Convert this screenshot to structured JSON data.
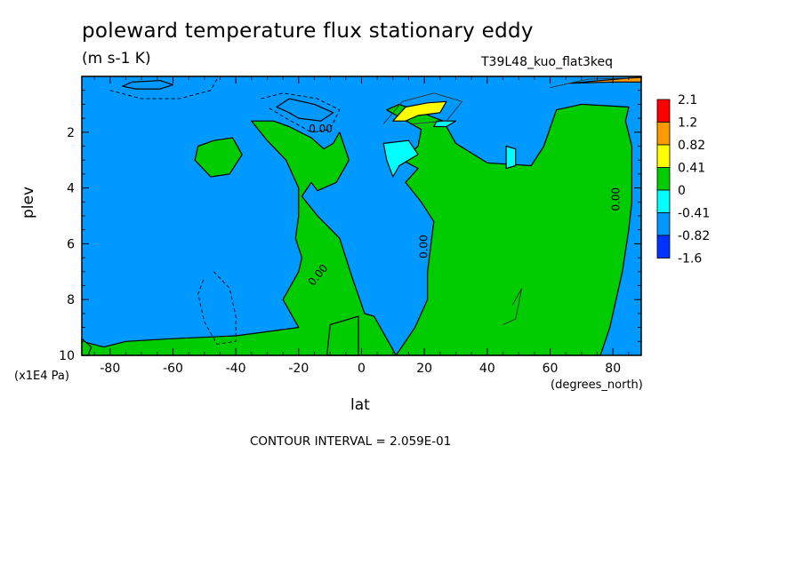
{
  "chart_data": {
    "type": "heatmap",
    "title": "poleward temperature flux stationary eddy",
    "units": "(m s-1 K)",
    "run_id": "T39L48_kuo_flat3keq",
    "xlabel": "lat",
    "xunits": "(degrees_north)",
    "ylabel": "plev",
    "yunits": "(x1E4 Pa)",
    "contour_interval": "CONTOUR INTERVAL = 2.059E-01",
    "xlim": [
      -89,
      89
    ],
    "ylim": [
      0,
      10
    ],
    "y_inverted": true,
    "x_ticks": [
      -80,
      -60,
      -40,
      -20,
      0,
      20,
      40,
      60,
      80
    ],
    "x_tick_labels": [
      "-80",
      "-60",
      "-40",
      "-20",
      "0",
      "20",
      "40",
      "60",
      "80"
    ],
    "y_ticks": [
      2,
      4,
      6,
      8,
      10
    ],
    "y_tick_labels": [
      "2",
      "4",
      "6",
      "8",
      "10"
    ],
    "colorbar": {
      "labels": [
        "2.1",
        "1.2",
        "0.82",
        "0.41",
        "0",
        "-0.41",
        "-0.82",
        "-1.6"
      ],
      "colors": [
        "#ff0000",
        "#ff9900",
        "#ffff00",
        "#00cc00",
        "#00ffff",
        "#0099ff",
        "#0033ff"
      ]
    },
    "contour_labels": [
      {
        "text": "0.00",
        "lat": -13,
        "plev": 2.0
      },
      {
        "text": "0.00",
        "lat": 21,
        "plev": 6.1
      },
      {
        "text": "0.00",
        "lat": -13,
        "plev": 7.2
      },
      {
        "text": "0.00",
        "lat": 82,
        "plev": 4.4
      }
    ],
    "regions": [
      {
        "fill": "#00cc00",
        "pts": [
          [
            -35,
            1.6
          ],
          [
            -28,
            1.6
          ],
          [
            -23,
            1.8
          ],
          [
            -16,
            2.2
          ],
          [
            -12,
            2.6
          ],
          [
            -9,
            2.4
          ],
          [
            -7,
            2.0
          ],
          [
            -4,
            3.0
          ],
          [
            -8,
            3.8
          ],
          [
            -14,
            4.1
          ],
          [
            -16,
            3.8
          ],
          [
            -19,
            4.3
          ],
          [
            -14,
            5.0
          ],
          [
            -7,
            5.8
          ],
          [
            -3,
            7.2
          ],
          [
            1,
            8.5
          ],
          [
            4,
            8.6
          ],
          [
            8,
            9.4
          ],
          [
            11,
            10.0
          ],
          [
            -89,
            10.0
          ],
          [
            -89,
            9.5
          ],
          [
            -82,
            9.7
          ],
          [
            -75,
            9.5
          ],
          [
            -60,
            9.4
          ],
          [
            -40,
            9.3
          ],
          [
            -20,
            9.0
          ],
          [
            -25,
            8.0
          ],
          [
            -20,
            7.0
          ],
          [
            -19,
            6.5
          ],
          [
            -21,
            5.8
          ],
          [
            -20,
            5.0
          ],
          [
            -20,
            4.0
          ],
          [
            -24,
            3.0
          ],
          [
            -30,
            2.3
          ]
        ]
      },
      {
        "fill": "#00cc00",
        "pts": [
          [
            8,
            1.2
          ],
          [
            19,
            1.9
          ],
          [
            18,
            2.5
          ],
          [
            13,
            3.0
          ],
          [
            18,
            3.3
          ],
          [
            14,
            3.8
          ],
          [
            19,
            4.5
          ],
          [
            23,
            5.2
          ],
          [
            21,
            7.0
          ],
          [
            21,
            8.0
          ],
          [
            17,
            9.0
          ],
          [
            11,
            10.0
          ],
          [
            76,
            10.0
          ],
          [
            79,
            9.0
          ],
          [
            81,
            8.0
          ],
          [
            83,
            7.0
          ],
          [
            85,
            5.5
          ],
          [
            86,
            4.5
          ],
          [
            86,
            2.5
          ],
          [
            84,
            1.6
          ],
          [
            85,
            1.1
          ],
          [
            70,
            1.0
          ],
          [
            62,
            1.2
          ],
          [
            58,
            2.5
          ],
          [
            54,
            3.2
          ],
          [
            40,
            3.1
          ],
          [
            30,
            2.4
          ],
          [
            26,
            1.6
          ],
          [
            12,
            1.0
          ]
        ]
      },
      {
        "fill": "#00cc00",
        "pts": [
          [
            -47,
            2.3
          ],
          [
            -41,
            2.2
          ],
          [
            -38,
            2.8
          ],
          [
            -42,
            3.5
          ],
          [
            -48,
            3.6
          ],
          [
            -53,
            3.0
          ],
          [
            -52,
            2.5
          ]
        ]
      },
      {
        "fill": "#00ffff",
        "pts": [
          [
            46,
            2.5
          ],
          [
            49,
            2.6
          ],
          [
            49,
            3.2
          ],
          [
            46,
            3.3
          ]
        ]
      },
      {
        "fill": "#00ffff",
        "pts": [
          [
            24,
            1.6
          ],
          [
            30,
            1.6
          ],
          [
            27,
            1.8
          ],
          [
            23,
            1.8
          ]
        ]
      },
      {
        "fill": "#00ffff",
        "pts": [
          [
            7,
            2.4
          ],
          [
            15,
            2.3
          ],
          [
            18,
            2.8
          ],
          [
            12,
            3.2
          ],
          [
            10,
            3.6
          ],
          [
            8,
            3.0
          ]
        ]
      },
      {
        "fill": "#00cc00",
        "pts": [
          [
            -10,
            8.9
          ],
          [
            -1,
            8.6
          ],
          [
            -1,
            10.0
          ],
          [
            -11,
            10.0
          ]
        ]
      },
      {
        "fill": "#0099ff",
        "pts": [
          [
            -27,
            1.1
          ],
          [
            -23,
            0.8
          ],
          [
            -15,
            1.0
          ],
          [
            -9,
            1.3
          ],
          [
            -13,
            1.6
          ],
          [
            -20,
            1.5
          ],
          [
            -23,
            1.3
          ]
        ]
      },
      {
        "fill": "#0099ff",
        "pts": [
          [
            -73,
            0.2
          ],
          [
            -64,
            0.15
          ],
          [
            -60,
            0.3
          ],
          [
            -64,
            0.45
          ],
          [
            -72,
            0.45
          ],
          [
            -76,
            0.35
          ]
        ]
      },
      {
        "fill": "#ffff00",
        "pts": [
          [
            10,
            1.6
          ],
          [
            14,
            1.1
          ],
          [
            21,
            0.95
          ],
          [
            27,
            0.9
          ],
          [
            25,
            1.3
          ],
          [
            18,
            1.4
          ],
          [
            14,
            1.6
          ]
        ]
      },
      {
        "fill": "#ff9900",
        "pts": [
          [
            66,
            0.25
          ],
          [
            86,
            0.05
          ],
          [
            89,
            0.02
          ],
          [
            89,
            0.2
          ],
          [
            80,
            0.2
          ]
        ]
      },
      {
        "fill": "#00cc00",
        "pts": [
          [
            -89,
            9.4
          ],
          [
            -86,
            9.7
          ],
          [
            -87,
            10.0
          ],
          [
            -89,
            10.0
          ]
        ]
      }
    ],
    "dashed_contours": [
      [
        [
          -47,
          7.0
        ],
        [
          -42,
          7.6
        ],
        [
          -40,
          8.6
        ],
        [
          -40,
          9.5
        ],
        [
          -46,
          9.6
        ],
        [
          -50,
          8.8
        ],
        [
          -52,
          7.8
        ],
        [
          -50,
          7.2
        ]
      ],
      [
        [
          -80,
          0.5
        ],
        [
          -70,
          0.8
        ],
        [
          -58,
          0.8
        ],
        [
          -48,
          0.5
        ],
        [
          -46,
          0.1
        ]
      ],
      [
        [
          -32,
          0.8
        ],
        [
          -25,
          0.6
        ],
        [
          -14,
          0.8
        ],
        [
          -7,
          1.2
        ],
        [
          -10,
          1.9
        ],
        [
          -16,
          2.0
        ],
        [
          -24,
          1.5
        ],
        [
          -30,
          1.1
        ]
      ]
    ],
    "solid_contours": [
      [
        [
          7,
          1.7
        ],
        [
          13,
          0.9
        ],
        [
          23,
          0.6
        ],
        [
          32,
          0.9
        ],
        [
          27,
          1.6
        ],
        [
          16,
          1.7
        ]
      ],
      [
        [
          48,
          8.2
        ],
        [
          51,
          7.6
        ],
        [
          49,
          8.7
        ],
        [
          45,
          8.9
        ]
      ],
      [
        [
          60,
          0.4
        ],
        [
          72,
          0.1
        ],
        [
          89,
          0.05
        ]
      ]
    ]
  }
}
